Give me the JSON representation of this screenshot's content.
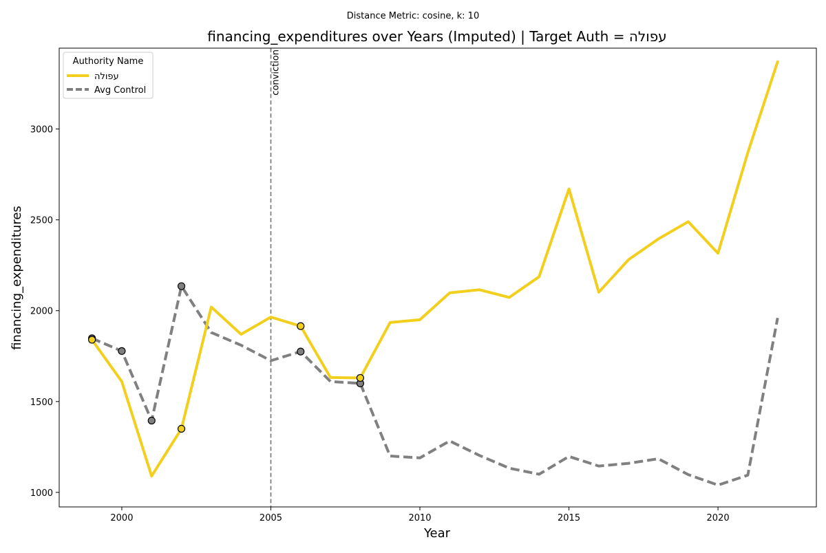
{
  "chart_data": {
    "type": "line",
    "suptitle": "Distance Metric: cosine, k: 10",
    "title": "financing_expenditures over Years (Imputed) | Target Auth = עפולה",
    "xlabel": "Year",
    "ylabel": "financing_expenditures",
    "xlim": [
      1997.9,
      2023.3
    ],
    "ylim": [
      920,
      3445
    ],
    "xticks": [
      2000,
      2005,
      2010,
      2015,
      2020
    ],
    "yticks": [
      1000,
      1500,
      2000,
      2500,
      3000
    ],
    "grid": false,
    "legend": {
      "title": "Authority Name",
      "placement": "top-left"
    },
    "vline": {
      "x": 2005,
      "label": "conviction",
      "color": "#808080"
    },
    "x": [
      1999,
      2000,
      2001,
      2002,
      2003,
      2004,
      2005,
      2006,
      2007,
      2008,
      2009,
      2010,
      2011,
      2012,
      2013,
      2014,
      2015,
      2016,
      2017,
      2018,
      2019,
      2020,
      2021,
      2022
    ],
    "series": [
      {
        "name": "עפולה",
        "color": "#f2cf1d",
        "style": "solid",
        "values": [
          1840,
          1610,
          1090,
          1350,
          2020,
          1870,
          1965,
          1915,
          1632,
          1630,
          1935,
          1950,
          2098,
          2115,
          2073,
          2187,
          2670,
          2102,
          2281,
          2395,
          2490,
          2316,
          2870,
          3370
        ],
        "markers": [
          1999,
          2002,
          2006,
          2008
        ]
      },
      {
        "name": "Avg Control",
        "color": "#808080",
        "style": "dashed",
        "values": [
          1848,
          1778,
          1395,
          2135,
          1880,
          1810,
          1725,
          1775,
          1610,
          1600,
          1200,
          1190,
          1283,
          1203,
          1133,
          1100,
          1198,
          1145,
          1160,
          1185,
          1098,
          1040,
          1095,
          1960
        ],
        "markers": [
          1999,
          2000,
          2001,
          2002,
          2006,
          2008
        ]
      }
    ]
  }
}
